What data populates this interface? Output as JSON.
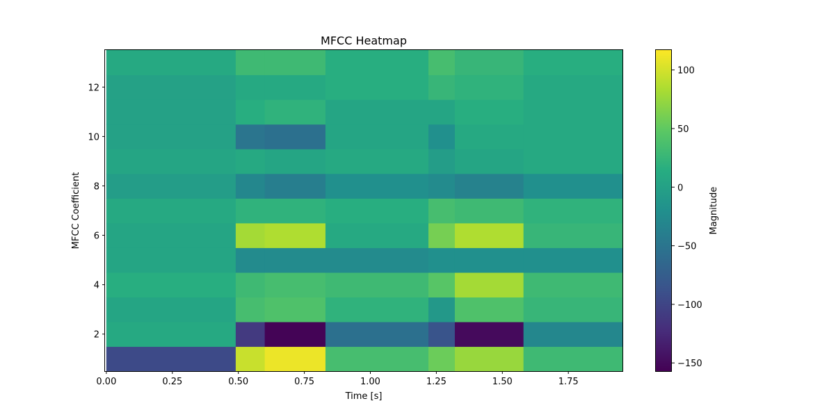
{
  "chart_data": {
    "type": "heatmap",
    "title": "MFCC Heatmap",
    "xlabel": "Time [s]",
    "ylabel": "MFCC Coefficient",
    "xlim": [
      -0.005,
      1.955
    ],
    "ylim": [
      0.5,
      13.5
    ],
    "x_ticks": [
      0.0,
      0.25,
      0.5,
      0.75,
      1.0,
      1.25,
      1.5,
      1.75
    ],
    "x_tick_labels": [
      "0.00",
      "0.25",
      "0.50",
      "0.75",
      "1.00",
      "1.25",
      "1.50",
      "1.75"
    ],
    "y_ticks": [
      2,
      4,
      6,
      8,
      10,
      12
    ],
    "y_tick_labels": [
      "2",
      "4",
      "6",
      "8",
      "10",
      "12"
    ],
    "coefficients": [
      1,
      2,
      3,
      4,
      5,
      6,
      7,
      8,
      9,
      10,
      11,
      12,
      13
    ],
    "time_segments_s": [
      [
        0.0,
        0.49
      ],
      [
        0.49,
        0.6
      ],
      [
        0.6,
        0.83
      ],
      [
        0.83,
        1.22
      ],
      [
        1.22,
        1.32
      ],
      [
        1.32,
        1.58
      ],
      [
        1.58,
        1.955
      ]
    ],
    "values": [
      [
        -95,
        95,
        110,
        35,
        55,
        75,
        30
      ],
      [
        10,
        -110,
        -155,
        -55,
        -85,
        -150,
        -30
      ],
      [
        5,
        35,
        40,
        20,
        -10,
        40,
        25
      ],
      [
        15,
        30,
        35,
        30,
        45,
        80,
        30
      ],
      [
        5,
        -25,
        -25,
        -25,
        -20,
        -20,
        -20
      ],
      [
        5,
        80,
        85,
        10,
        60,
        85,
        25
      ],
      [
        10,
        20,
        20,
        15,
        35,
        30,
        20
      ],
      [
        -5,
        -30,
        -40,
        -20,
        -25,
        -35,
        -20
      ],
      [
        5,
        10,
        5,
        10,
        -5,
        5,
        10
      ],
      [
        0,
        -50,
        -55,
        5,
        -20,
        10,
        10
      ],
      [
        0,
        15,
        20,
        5,
        5,
        15,
        10
      ],
      [
        0,
        10,
        10,
        15,
        25,
        20,
        10
      ],
      [
        10,
        30,
        30,
        15,
        35,
        25,
        15
      ]
    ],
    "colorbar": {
      "label": "Magnitude",
      "vmin": -157,
      "vmax": 117,
      "ticks": [
        100,
        50,
        0,
        -50,
        -100,
        -150
      ],
      "tick_labels": [
        "100",
        "50",
        "0",
        "−50",
        "−100",
        "−150"
      ],
      "colormap": "viridis"
    },
    "grid": false
  }
}
